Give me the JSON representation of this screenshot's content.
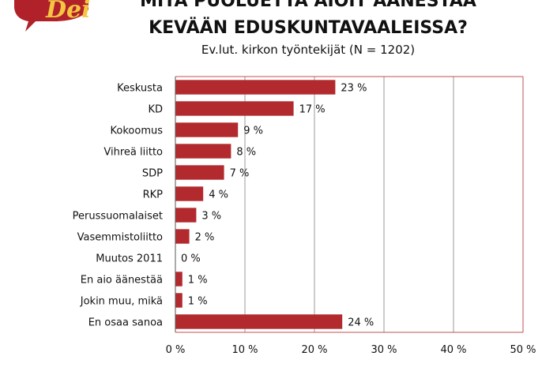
{
  "logo": {
    "text": "Dei"
  },
  "chart_data": {
    "type": "bar",
    "orientation": "horizontal",
    "title_lines": [
      "MITÄ PUOLUETTA AIOIT ÄÄNESTÄÄ",
      "KEVÄÄN EDUSKUNTAVAALEISSA?"
    ],
    "subtitle": "Ev.lut. kirkon työntekijät (N = 1202)",
    "categories": [
      "Keskusta",
      "KD",
      "Kokoomus",
      "Vihreä liitto",
      "SDP",
      "RKP",
      "Perussuomalaiset",
      "Vasemmistoliitto",
      "Muutos 2011",
      "En aio äänestää",
      "Jokin muu, mikä",
      "En osaa sanoa"
    ],
    "values": [
      23,
      17,
      9,
      8,
      7,
      4,
      3,
      2,
      0,
      1,
      1,
      24
    ],
    "value_labels": [
      "23 %",
      "17 %",
      "9 %",
      "8 %",
      "7 %",
      "4 %",
      "3 %",
      "2 %",
      "0 %",
      "1 %",
      "1 %",
      "24 %"
    ],
    "xlim": [
      0,
      50
    ],
    "x_ticks": [
      0,
      10,
      20,
      30,
      40,
      50
    ],
    "x_tick_labels": [
      "0 %",
      "10 %",
      "20 %",
      "30 %",
      "40 %",
      "50 %"
    ],
    "grid": true,
    "legend": "none",
    "bar_color": "#b22a2e",
    "grid_color": "#9a9a9a",
    "border_color": "#c0504d"
  }
}
